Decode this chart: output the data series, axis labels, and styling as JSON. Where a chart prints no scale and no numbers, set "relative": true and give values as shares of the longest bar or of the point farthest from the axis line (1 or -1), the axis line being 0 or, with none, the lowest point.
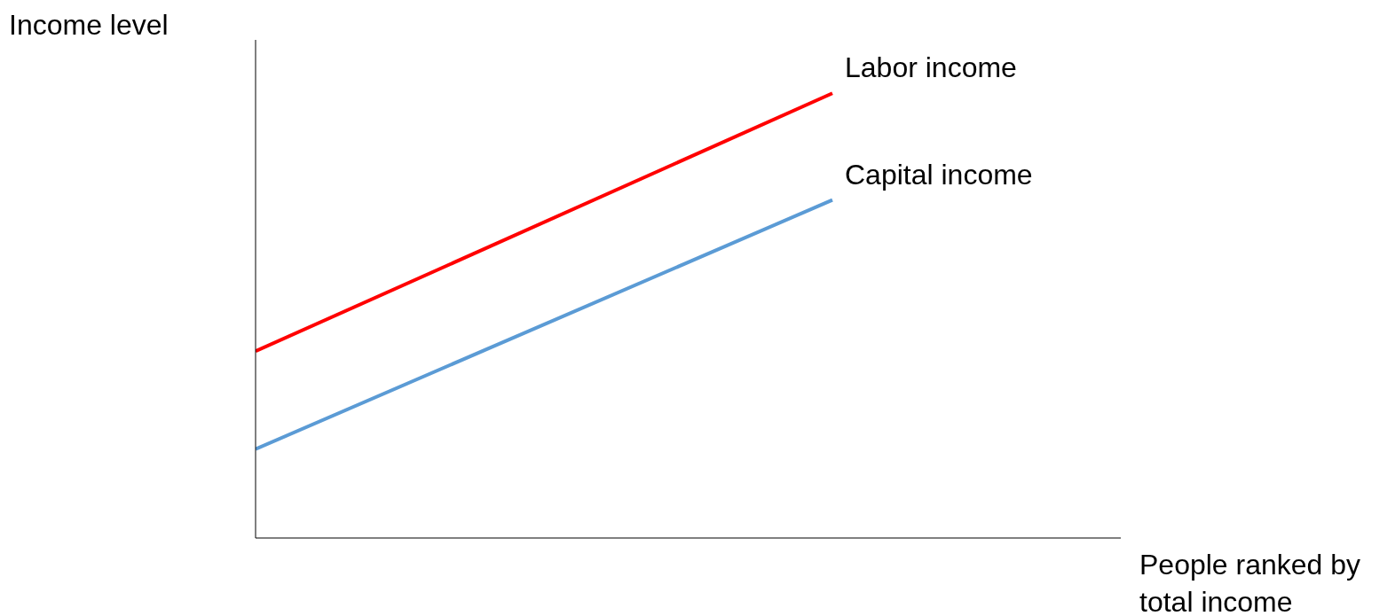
{
  "chart_data": {
    "type": "line",
    "relative": true,
    "ylabel": "Income level",
    "xlabel": "People ranked by\ntotal income",
    "categories": [
      null,
      null
    ],
    "series": [
      {
        "name": "Labor income",
        "color": "#ff0000",
        "values": [
          0.42,
          1
        ]
      },
      {
        "name": "Capital income",
        "color": "#5b9bd5",
        "values": [
          0.2,
          0.76
        ]
      }
    ],
    "grid": false,
    "legend": false,
    "marker": "none",
    "line_style": "solid"
  }
}
